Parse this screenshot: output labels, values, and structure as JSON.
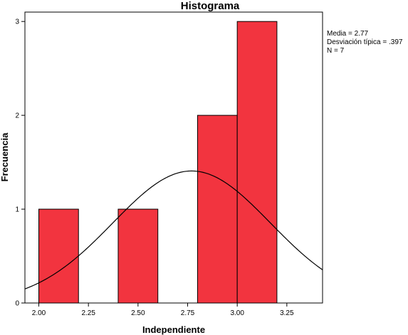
{
  "chart_data": {
    "type": "bar",
    "title": "Histograma",
    "xlabel": "Independiente",
    "ylabel": "Frecuencia",
    "xlim": [
      1.93,
      3.43
    ],
    "ylim": [
      0,
      3.1
    ],
    "x_ticks": [
      "2.00",
      "2.25",
      "2.50",
      "2.75",
      "3.00",
      "3.25"
    ],
    "y_ticks": [
      "0",
      "1",
      "2",
      "3"
    ],
    "bins": [
      {
        "start": 2.0,
        "end": 2.2,
        "count": 1
      },
      {
        "start": 2.4,
        "end": 2.6,
        "count": 1
      },
      {
        "start": 2.8,
        "end": 3.0,
        "count": 2
      },
      {
        "start": 3.0,
        "end": 3.2,
        "count": 3
      }
    ],
    "bar_color": "#f2343f",
    "normal_curve": {
      "mean": 2.77,
      "sd": 0.397,
      "n": 7,
      "bin_width": 0.2
    },
    "stats": {
      "mean_label": "Media = 2.77",
      "sd_label": "Desviación típica = .397",
      "n_label": "N = 7"
    },
    "grid": false
  }
}
